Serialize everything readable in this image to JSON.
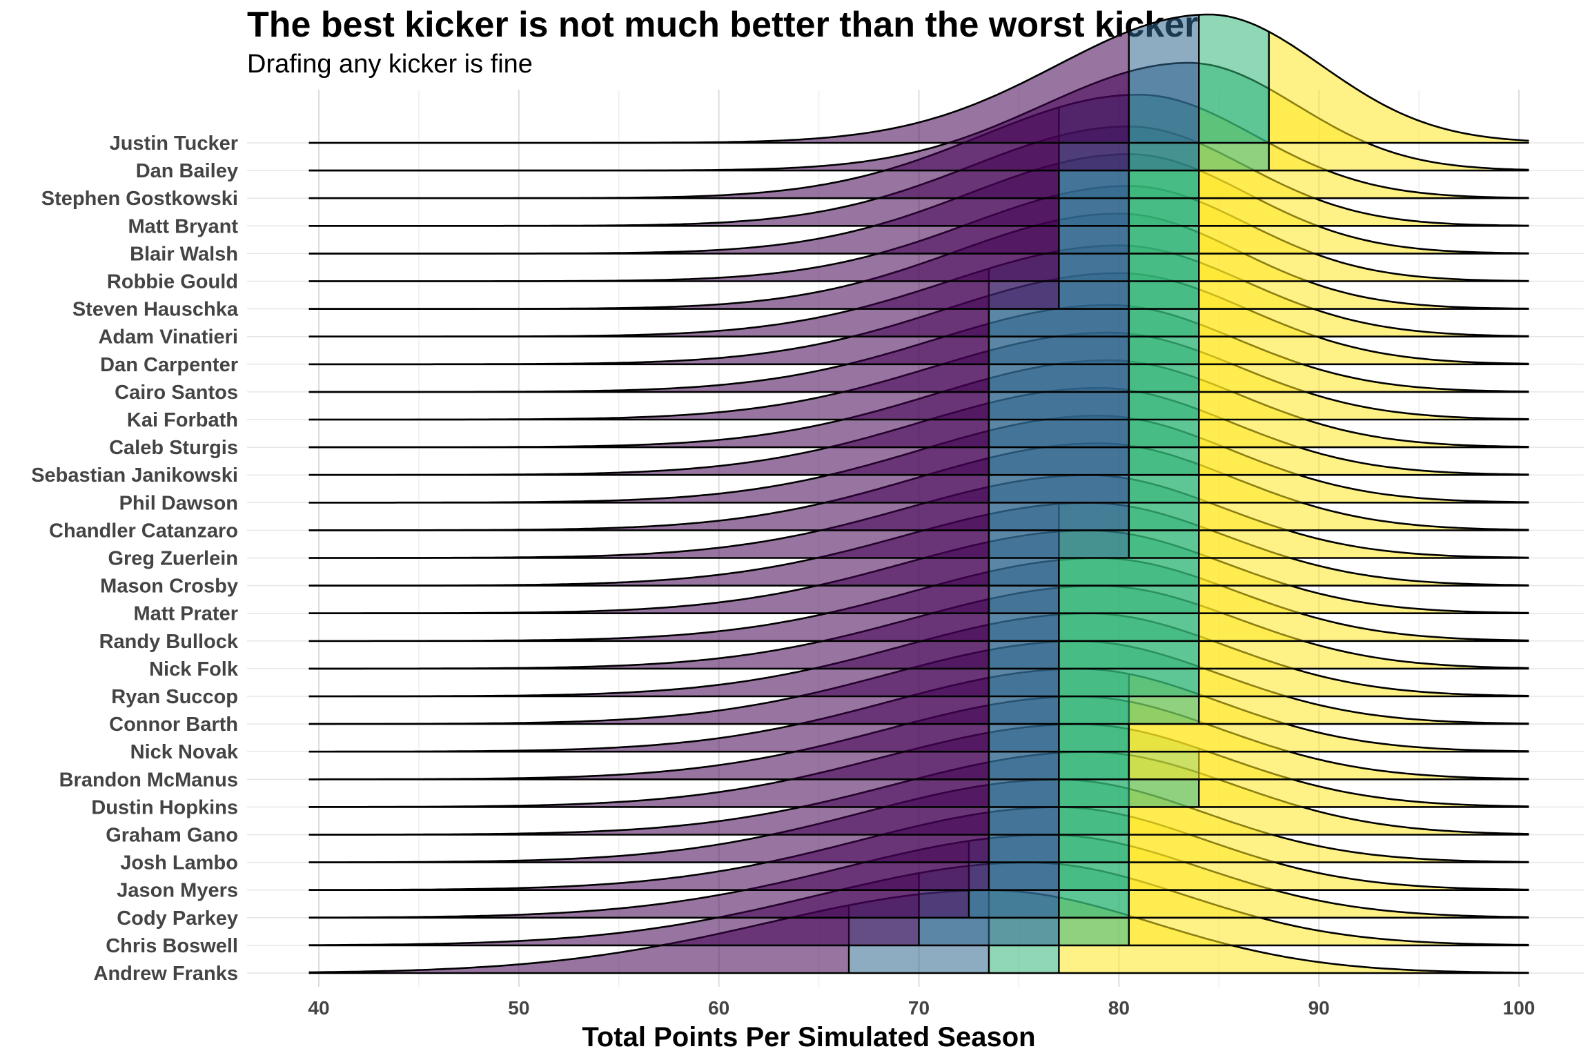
{
  "chart_data": {
    "type": "ridgeline",
    "title": "The best kicker is not much better than the worst kicker",
    "subtitle": "Drafing any kicker is fine",
    "xlabel": "Total Points Per Simulated Season",
    "ylabel": "",
    "xlim": [
      36.5,
      103.5
    ],
    "xticks": [
      40,
      50,
      60,
      70,
      80,
      90,
      100
    ],
    "grid": true,
    "quantile_colors": [
      "#440154",
      "#31688e",
      "#35b779",
      "#fde725"
    ],
    "kickers": [
      {
        "name": "Justin Tucker",
        "q": [
          80.5,
          84.0,
          87.5
        ],
        "mode": 84.5,
        "spread": 5.6,
        "peak": 1.55
      },
      {
        "name": "Dan Bailey",
        "q": [
          80.5,
          84.0,
          87.5
        ],
        "mode": 83.5,
        "spread": 5.4,
        "peak": 1.3
      },
      {
        "name": "Stephen Gostkowski",
        "q": [
          77.0,
          80.5,
          84.0
        ],
        "mode": 81.0,
        "spread": 5.8,
        "peak": 1.25
      },
      {
        "name": "Matt Bryant",
        "q": [
          77.0,
          80.5,
          84.0
        ],
        "mode": 80.5,
        "spread": 5.8,
        "peak": 1.2
      },
      {
        "name": "Blair Walsh",
        "q": [
          77.0,
          80.5,
          84.0
        ],
        "mode": 80.5,
        "spread": 5.9,
        "peak": 1.2
      },
      {
        "name": "Robbie Gould",
        "q": [
          77.0,
          80.5,
          84.0
        ],
        "mode": 80.5,
        "spread": 5.9,
        "peak": 1.15
      },
      {
        "name": "Steven Hauschka",
        "q": [
          77.0,
          80.5,
          84.0
        ],
        "mode": 80.0,
        "spread": 6.0,
        "peak": 1.15
      },
      {
        "name": "Adam Vinatieri",
        "q": [
          73.5,
          80.5,
          84.0
        ],
        "mode": 80.0,
        "spread": 6.3,
        "peak": 1.1
      },
      {
        "name": "Dan Carpenter",
        "q": [
          73.5,
          80.5,
          84.0
        ],
        "mode": 80.0,
        "spread": 6.4,
        "peak": 1.1
      },
      {
        "name": "Cairo Santos",
        "q": [
          73.5,
          80.5,
          84.0
        ],
        "mode": 79.5,
        "spread": 6.4,
        "peak": 1.05
      },
      {
        "name": "Kai Forbath",
        "q": [
          73.5,
          80.5,
          84.0
        ],
        "mode": 79.5,
        "spread": 6.5,
        "peak": 1.05
      },
      {
        "name": "Caleb Sturgis",
        "q": [
          73.5,
          80.5,
          84.0
        ],
        "mode": 79.5,
        "spread": 6.5,
        "peak": 1.05
      },
      {
        "name": "Sebastian Janikowski",
        "q": [
          73.5,
          80.5,
          84.0
        ],
        "mode": 79.0,
        "spread": 6.6,
        "peak": 1.05
      },
      {
        "name": "Phil Dawson",
        "q": [
          73.5,
          80.5,
          84.0
        ],
        "mode": 79.0,
        "spread": 6.6,
        "peak": 1.05
      },
      {
        "name": "Chandler Catanzaro",
        "q": [
          73.5,
          80.5,
          84.0
        ],
        "mode": 79.0,
        "spread": 6.7,
        "peak": 1.05
      },
      {
        "name": "Greg Zuerlein",
        "q": [
          73.5,
          80.5,
          84.0
        ],
        "mode": 78.5,
        "spread": 6.7,
        "peak": 1.0
      },
      {
        "name": "Mason Crosby",
        "q": [
          73.5,
          77.0,
          84.0
        ],
        "mode": 78.5,
        "spread": 6.8,
        "peak": 1.0
      },
      {
        "name": "Matt Prater",
        "q": [
          73.5,
          77.0,
          84.0
        ],
        "mode": 78.5,
        "spread": 6.8,
        "peak": 1.0
      },
      {
        "name": "Randy Bullock",
        "q": [
          73.5,
          77.0,
          84.0
        ],
        "mode": 79.0,
        "spread": 6.8,
        "peak": 1.0
      },
      {
        "name": "Nick Folk",
        "q": [
          73.5,
          77.0,
          84.0
        ],
        "mode": 79.0,
        "spread": 6.9,
        "peak": 1.0
      },
      {
        "name": "Ryan Succop",
        "q": [
          73.5,
          77.0,
          84.0
        ],
        "mode": 78.5,
        "spread": 6.9,
        "peak": 1.0
      },
      {
        "name": "Connor Barth",
        "q": [
          73.5,
          77.0,
          84.0
        ],
        "mode": 78.0,
        "spread": 7.0,
        "peak": 1.0
      },
      {
        "name": "Nick Novak",
        "q": [
          73.5,
          77.0,
          80.5
        ],
        "mode": 78.0,
        "spread": 7.0,
        "peak": 1.0
      },
      {
        "name": "Brandon McManus",
        "q": [
          73.5,
          77.0,
          80.5
        ],
        "mode": 78.0,
        "spread": 7.1,
        "peak": 1.0
      },
      {
        "name": "Dustin Hopkins",
        "q": [
          73.5,
          77.0,
          84.0
        ],
        "mode": 78.0,
        "spread": 7.2,
        "peak": 1.0
      },
      {
        "name": "Graham Gano",
        "q": [
          73.5,
          77.0,
          80.5
        ],
        "mode": 78.5,
        "spread": 7.2,
        "peak": 1.0
      },
      {
        "name": "Josh Lambo",
        "q": [
          73.5,
          77.0,
          80.5
        ],
        "mode": 77.0,
        "spread": 7.2,
        "peak": 1.0
      },
      {
        "name": "Jason Myers",
        "q": [
          73.5,
          77.0,
          80.5
        ],
        "mode": 77.0,
        "spread": 7.3,
        "peak": 1.0
      },
      {
        "name": "Cody Parkey",
        "q": [
          72.5,
          77.0,
          80.5
        ],
        "mode": 76.5,
        "spread": 7.6,
        "peak": 1.0
      },
      {
        "name": "Chris Boswell",
        "q": [
          70.0,
          77.0,
          80.5
        ],
        "mode": 75.5,
        "spread": 7.8,
        "peak": 1.0
      },
      {
        "name": "Andrew Franks",
        "q": [
          66.5,
          73.5,
          77.0
        ],
        "mode": 73.5,
        "spread": 8.2,
        "peak": 1.0
      }
    ]
  }
}
